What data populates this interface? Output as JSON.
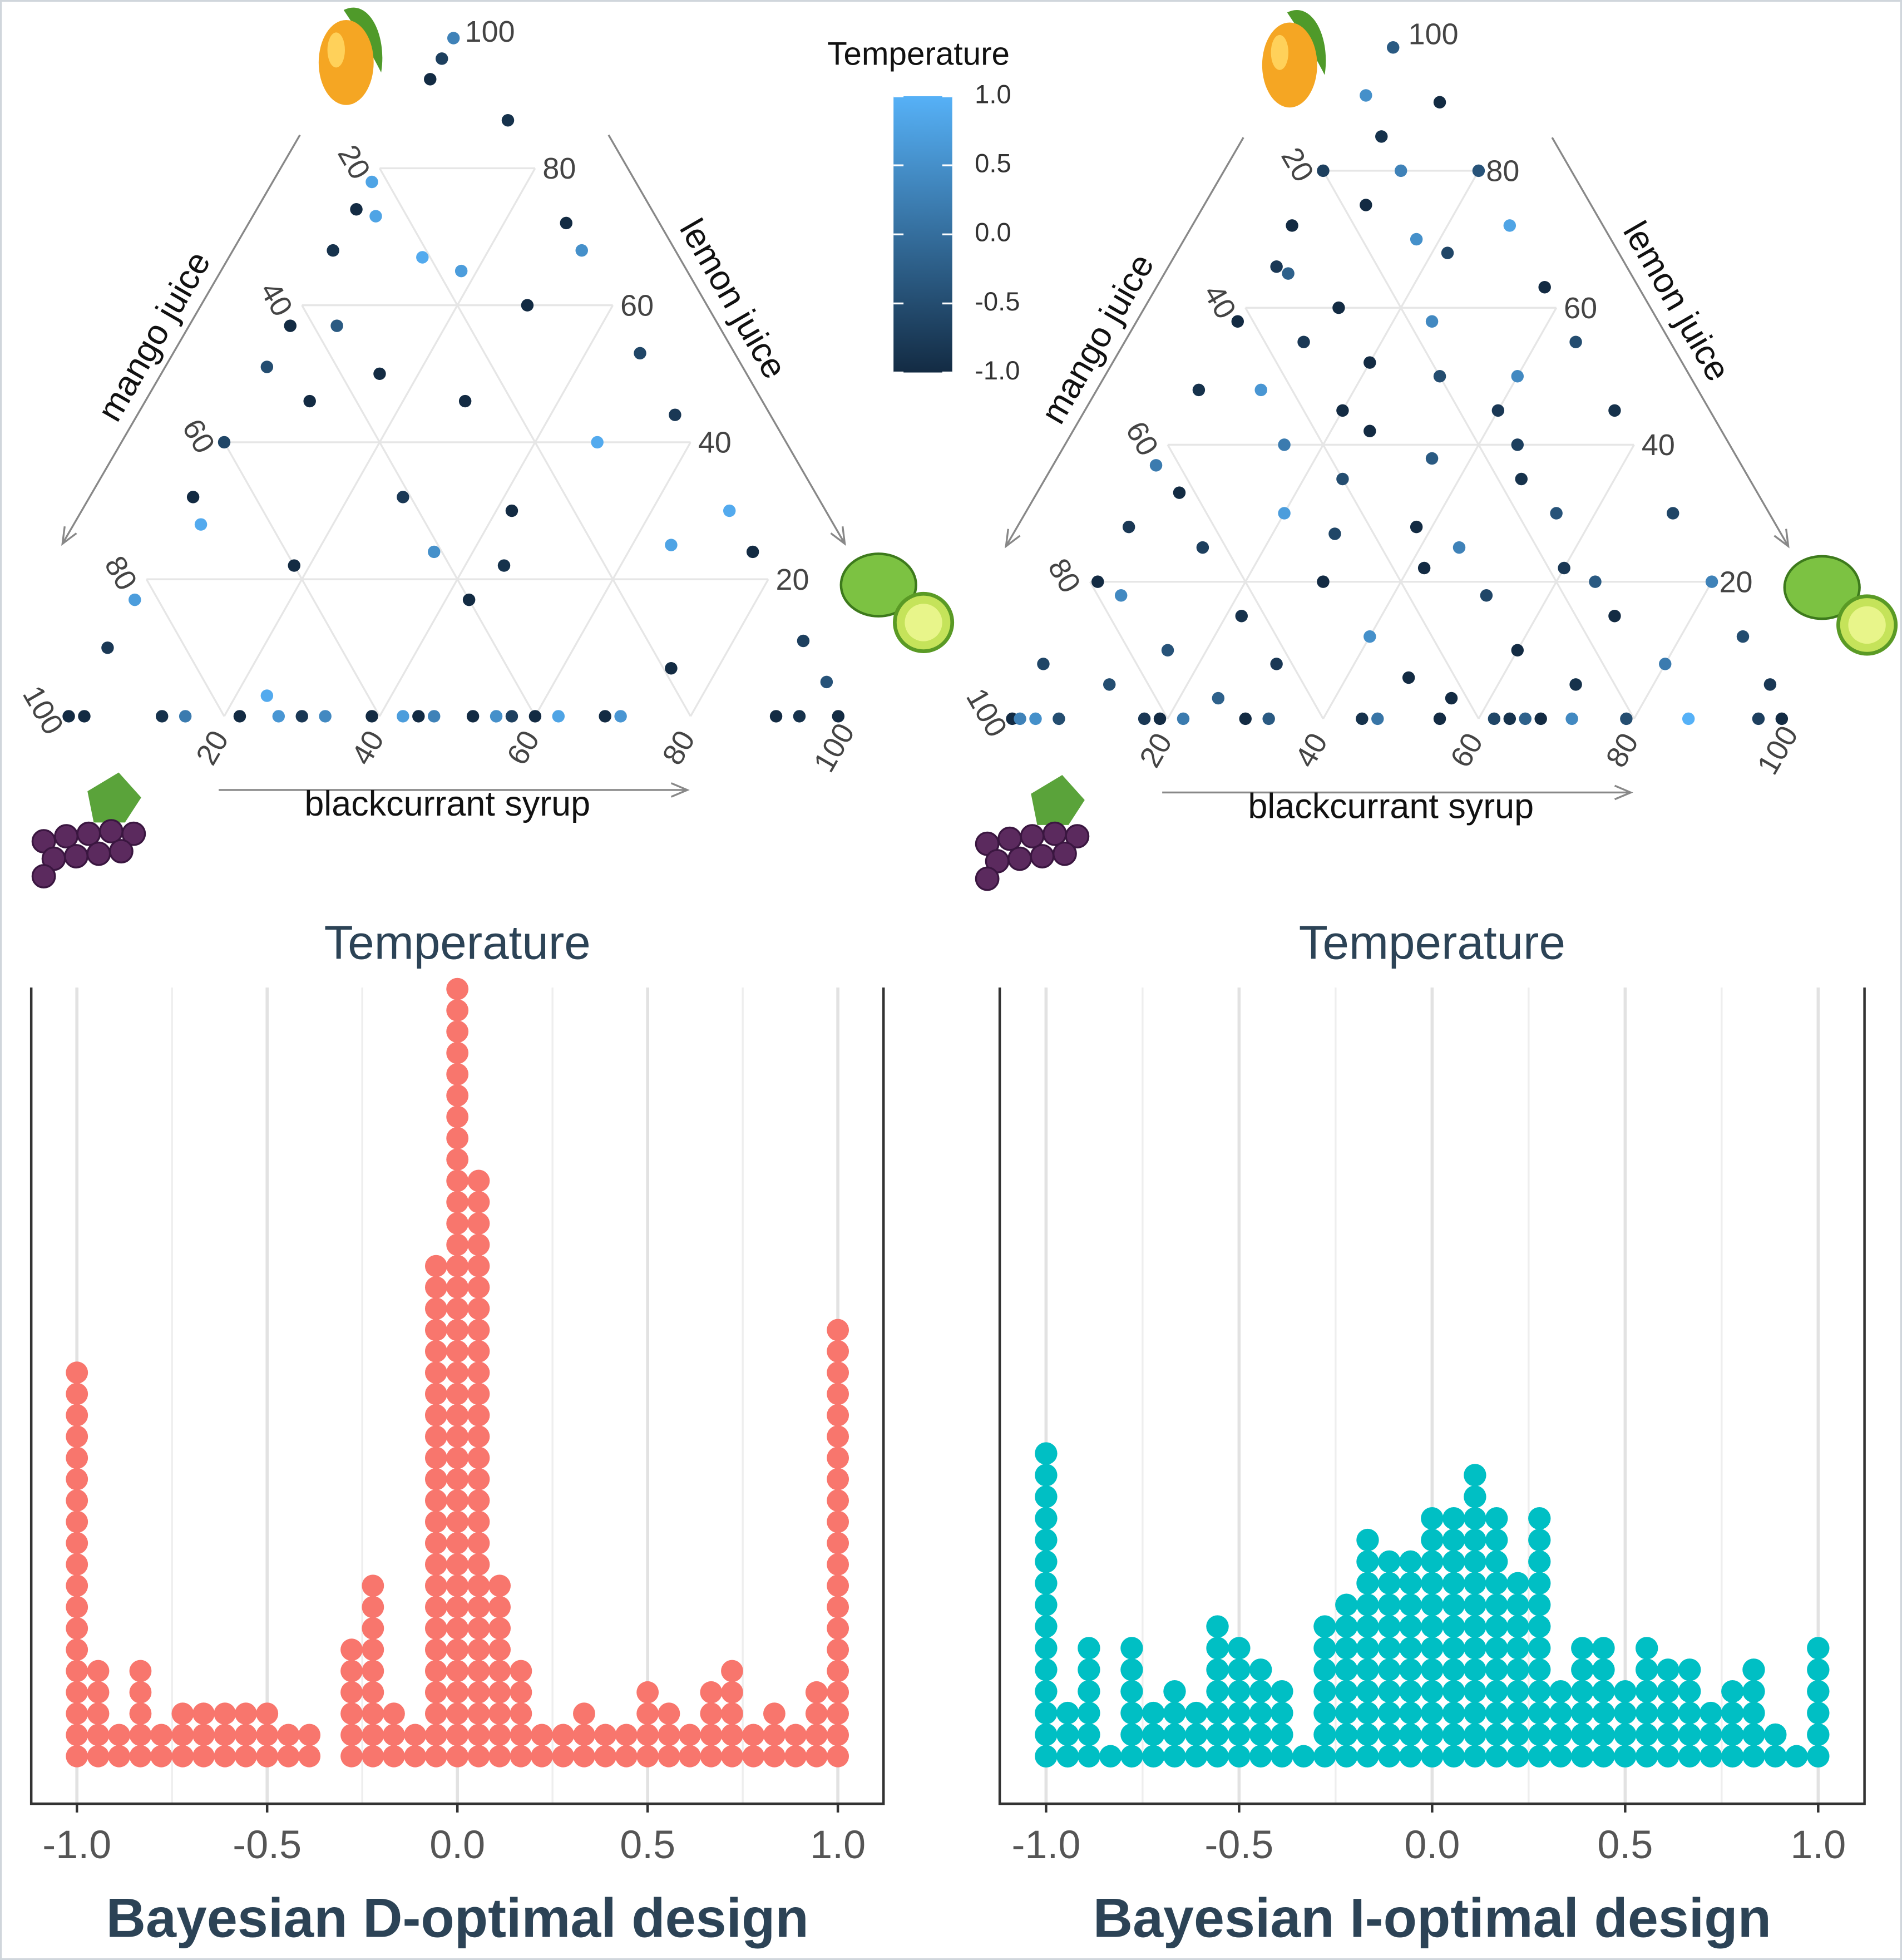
{
  "chart_data": [
    {
      "type": "ternary",
      "axis_labels": {
        "left": "mango juice",
        "right": "lemon juice",
        "bottom": "blackcurrant syrup"
      },
      "ticks": [
        20,
        40,
        60,
        80,
        100
      ],
      "colors": [
        "#132B43",
        "#56B1F7"
      ],
      "colorlim": [
        -1,
        1
      ],
      "colorbar": {
        "title": "Temperature",
        "ticks": [
          {
            "value": 1,
            "label": "1.0"
          },
          0.5,
          {
            "value": 0,
            "label": "0.0"
          },
          -0.5,
          {
            "value": -1,
            "label": "-1.0"
          }
        ]
      },
      "points": {
        "mango": [
          0,
          0,
          0,
          0,
          0,
          0,
          0,
          0,
          0,
          0,
          0,
          0,
          0,
          0,
          0,
          0,
          0,
          0,
          0,
          0,
          0,
          0,
          10,
          17,
          32,
          40,
          51,
          57,
          68,
          74,
          78,
          93,
          96,
          99,
          87,
          72,
          68,
          53,
          44,
          30,
          24,
          11,
          5,
          46,
          50,
          32,
          17,
          22,
          60,
          46,
          22,
          7,
          25,
          24,
          28,
          3,
          73,
          67,
          65,
          57,
          40,
          30
        ],
        "lemon": [
          0,
          2,
          12,
          15,
          22,
          27,
          30,
          33,
          39,
          43,
          45,
          47,
          52,
          55,
          57,
          60,
          63,
          69,
          71,
          91,
          94,
          99,
          0,
          0,
          0,
          0,
          0,
          0,
          0,
          0,
          0,
          0,
          0,
          0,
          13,
          28,
          32,
          47,
          56,
          70,
          76,
          89,
          95,
          8,
          15,
          27,
          43,
          45,
          29,
          28,
          18,
          74,
          65,
          35,
          3,
          24,
          3,
          12,
          18,
          6,
          48,
          42
        ],
        "temperature": [
          -1,
          -1,
          -0.9,
          0.2,
          -1,
          0.6,
          -0.8,
          0.4,
          -1,
          0.7,
          -1,
          0.3,
          -1,
          0.5,
          -0.7,
          -1,
          0.8,
          -1,
          0.6,
          -1,
          -0.9,
          -1,
          -0.8,
          0.7,
          -1,
          -0.6,
          -0.5,
          -1,
          -0.9,
          -1,
          0.8,
          -1,
          -0.7,
          0.3,
          -0.9,
          -1,
          0.5,
          -0.6,
          -0.8,
          0.9,
          -1,
          -0.7,
          -0.4,
          -1,
          -1,
          -0.8,
          -1,
          -0.9,
          -1,
          -1,
          -1,
          -1,
          0.8,
          0.5,
          0.9,
          0.9,
          0.8,
          0.9,
          0.7,
          -0.3,
          0.9,
          -1
        ]
      }
    },
    {
      "type": "ternary",
      "axis_labels": {
        "left": "mango juice",
        "right": "lemon juice",
        "bottom": "blackcurrant syrup"
      },
      "ticks": [
        20,
        40,
        60,
        80,
        100
      ],
      "colors": [
        "#132B43",
        "#56B1F7"
      ],
      "colorlim": [
        -1,
        1
      ],
      "points": {
        "mango": [
          0,
          0,
          0,
          0,
          0,
          0,
          0,
          0,
          0,
          0,
          0,
          0,
          0,
          0,
          0,
          0,
          0,
          0,
          0,
          0,
          0,
          8,
          20,
          28,
          37,
          48,
          58,
          66,
          72,
          80,
          91,
          98,
          90,
          80,
          72,
          63,
          55,
          45,
          30,
          20,
          12,
          5,
          85,
          80,
          75,
          70,
          68,
          65,
          60,
          58,
          52,
          50,
          48,
          45,
          42,
          40,
          38,
          35,
          33,
          30,
          30,
          28,
          25,
          25,
          22,
          20,
          18,
          18,
          15,
          15,
          12,
          10,
          10,
          8,
          8,
          6,
          5,
          5,
          3,
          3,
          40,
          35,
          45,
          55,
          27,
          22,
          20,
          50
        ],
        "lemon": [
          0,
          1,
          3,
          6,
          17,
          19,
          22,
          30,
          33,
          45,
          47,
          55,
          62,
          64,
          66,
          68,
          72,
          79,
          87,
          96,
          99,
          0,
          1,
          1,
          0,
          0,
          0,
          1,
          0,
          0,
          0,
          0,
          10,
          20,
          28,
          37,
          45,
          55,
          70,
          80,
          88,
          95,
          5,
          10,
          8,
          17,
          22,
          3,
          12,
          25,
          20,
          30,
          8,
          40,
          25,
          15,
          35,
          48,
          5,
          20,
          55,
          38,
          12,
          45,
          60,
          30,
          5,
          52,
          22,
          70,
          40,
          15,
          60,
          30,
          80,
          48,
          10,
          70,
          25,
          55,
          45,
          25,
          20,
          10,
          28,
          42,
          65,
          40
        ],
        "temperature": [
          -1,
          0.3,
          0.5,
          -0.5,
          -0.8,
          -1,
          0.2,
          -1,
          -0.3,
          -0.9,
          0.1,
          -1,
          -0.6,
          -0.9,
          -0.2,
          -1,
          0.4,
          -0.5,
          1,
          -0.7,
          -1,
          -0.6,
          -1,
          -0.8,
          0.2,
          -0.9,
          -1,
          -0.8,
          -1,
          -0.7,
          0.5,
          -0.3,
          -1,
          -0.4,
          0.8,
          -1,
          -0.5,
          -0.9,
          -0.6,
          0.3,
          -0.5,
          -0.8,
          -0.9,
          0.3,
          -1,
          0.5,
          -0.6,
          -0.2,
          -1,
          0.4,
          -1,
          -0.5,
          0.6,
          -0.8,
          -1,
          0.2,
          -0.3,
          -0.9,
          -1,
          0.7,
          -0.4,
          -1,
          -0.7,
          0.3,
          -0.8,
          -1,
          0.4,
          -0.6,
          -0.9,
          -1,
          0.5,
          -0.4,
          -1,
          -0.8,
          0.2,
          -1,
          -0.5,
          -0.9,
          -0.2,
          -1,
          -0.7,
          -0.5,
          -1,
          -0.8,
          -0.6,
          -1,
          -0.3,
          0.4
        ]
      }
    },
    {
      "type": "dotplot",
      "title": "Temperature",
      "caption": "Bayesian D-optimal design",
      "color": "#F8766D",
      "x": [
        -1,
        -0.944,
        -0.889,
        -0.833,
        -0.778,
        -0.722,
        -0.667,
        -0.611,
        -0.556,
        -0.5,
        -0.444,
        -0.389,
        -0.333,
        -0.278,
        -0.222,
        -0.167,
        -0.111,
        -0.056,
        0,
        0.056,
        0.111,
        0.167,
        0.222,
        0.278,
        0.333,
        0.389,
        0.444,
        0.5,
        0.556,
        0.611,
        0.667,
        0.722,
        0.778,
        0.833,
        0.889,
        0.944,
        1
      ],
      "counts": [
        19,
        5,
        2,
        5,
        2,
        3,
        3,
        3,
        3,
        3,
        2,
        2,
        0,
        6,
        9,
        3,
        2,
        24,
        37,
        28,
        9,
        5,
        2,
        2,
        3,
        2,
        2,
        4,
        3,
        2,
        4,
        5,
        2,
        3,
        2,
        4,
        21
      ],
      "xlim": [
        -1.12,
        1.12
      ],
      "xticks": [
        {
          "value": -1,
          "label": "-1.0"
        },
        -0.5,
        {
          "value": 0,
          "label": "0.0"
        },
        0.5,
        {
          "value": 1,
          "label": "1.0"
        }
      ],
      "minor_xticks": [
        -0.75,
        -0.25,
        0.25,
        0.75
      ]
    },
    {
      "type": "dotplot",
      "title": "Temperature",
      "caption": "Bayesian I-optimal design",
      "color": "#00BFC4",
      "x": [
        -1,
        -0.944,
        -0.889,
        -0.833,
        -0.778,
        -0.722,
        -0.667,
        -0.611,
        -0.556,
        -0.5,
        -0.444,
        -0.389,
        -0.333,
        -0.278,
        -0.222,
        -0.167,
        -0.111,
        -0.056,
        0,
        0.056,
        0.111,
        0.167,
        0.222,
        0.278,
        0.333,
        0.389,
        0.444,
        0.5,
        0.556,
        0.611,
        0.667,
        0.722,
        0.778,
        0.833,
        0.889,
        0.944,
        1
      ],
      "counts": [
        15,
        3,
        6,
        1,
        6,
        3,
        4,
        3,
        7,
        6,
        5,
        4,
        1,
        7,
        8,
        11,
        10,
        10,
        12,
        12,
        14,
        12,
        9,
        12,
        4,
        6,
        6,
        4,
        6,
        5,
        5,
        3,
        4,
        5,
        2,
        1,
        6
      ],
      "xlim": [
        -1.12,
        1.12
      ],
      "xticks": [
        {
          "value": -1,
          "label": "-1.0"
        },
        -0.5,
        {
          "value": 0,
          "label": "0.0"
        },
        0.5,
        {
          "value": 1,
          "label": "1.0"
        }
      ],
      "minor_xticks": [
        -0.75,
        -0.25,
        0.25,
        0.75
      ]
    }
  ]
}
